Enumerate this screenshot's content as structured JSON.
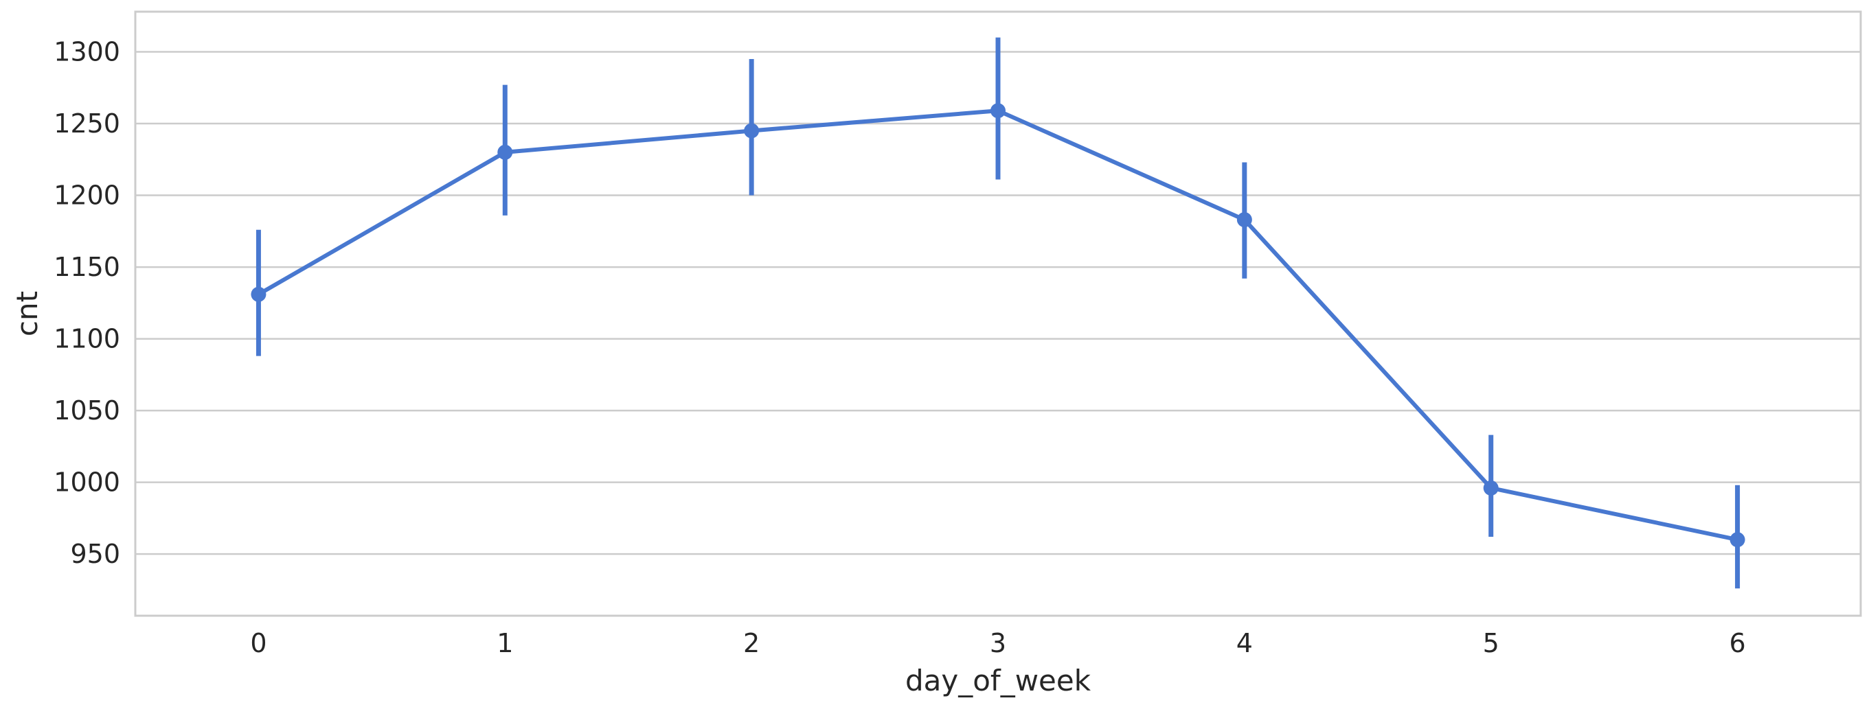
{
  "chart_data": {
    "type": "line",
    "title": "",
    "xlabel": "day_of_week",
    "ylabel": "cnt",
    "categories": [
      "0",
      "1",
      "2",
      "3",
      "4",
      "5",
      "6"
    ],
    "x": [
      0,
      1,
      2,
      3,
      4,
      5,
      6
    ],
    "series": [
      {
        "name": "cnt",
        "values": [
          1131,
          1230,
          1245,
          1259,
          1183,
          996,
          960
        ],
        "ci_low": [
          1088,
          1186,
          1200,
          1211,
          1142,
          962,
          926
        ],
        "ci_high": [
          1176,
          1277,
          1295,
          1310,
          1223,
          1033,
          998
        ]
      }
    ],
    "ylim": [
      907,
      1328
    ],
    "xlim": [
      -0.5,
      6.5
    ],
    "yticks": [
      950,
      1000,
      1050,
      1100,
      1150,
      1200,
      1250,
      1300
    ],
    "grid": "horizontal",
    "legend": "none",
    "colors": {
      "series": "#4878d0",
      "grid": "#cccccc",
      "frame": "#cccccc",
      "text": "#262626",
      "background": "#ffffff"
    }
  }
}
